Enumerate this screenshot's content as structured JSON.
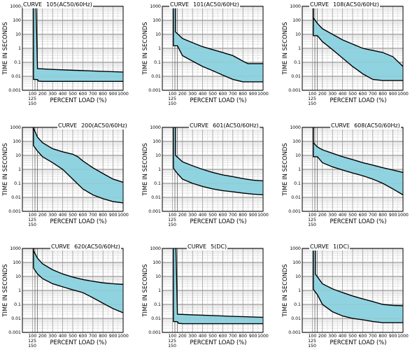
{
  "axes": {
    "ylabel": "TIME   IN   SECONDS",
    "xlabel": "PERCENT   LOAD   (%)",
    "ytick_labels": [
      "1000",
      "100",
      "10",
      "1",
      "0.1",
      "0.01",
      "0.001"
    ],
    "xtick_labels": [
      "100",
      "200",
      "300",
      "400",
      "500",
      "600",
      "700",
      "800",
      "900",
      "1000"
    ],
    "extra_xtick_labels": [
      "125",
      "150"
    ]
  },
  "colors": {
    "band_fill": "#8fd3e0",
    "grid_major": "#9d9d9d",
    "grid_minor": "#cfcfcf",
    "curve": "#000000"
  },
  "chart_data": [
    {
      "type": "area",
      "title_word": "CURVE",
      "title_code": "105(AC50/60Hz)",
      "xlabel": "PERCENT LOAD (%)",
      "ylabel": "TIME IN SECONDS",
      "xlim": [
        0,
        1000
      ],
      "ylim": [
        0.001,
        1000
      ],
      "yscale": "log",
      "upper": [
        [
          130,
          1000
        ],
        [
          135,
          1000
        ],
        [
          150,
          0.035
        ],
        [
          300,
          0.031
        ],
        [
          500,
          0.027
        ],
        [
          700,
          0.024
        ],
        [
          850,
          0.022
        ],
        [
          1000,
          0.02
        ]
      ],
      "lower": [
        [
          110,
          1000
        ],
        [
          110,
          0.006
        ],
        [
          150,
          0.0058
        ],
        [
          160,
          0.0045
        ],
        [
          200,
          0.0043
        ],
        [
          1000,
          0.0043
        ]
      ]
    },
    {
      "type": "area",
      "title_word": "CURVE",
      "title_code": "101(AC50/60Hz)",
      "xlabel": "PERCENT LOAD (%)",
      "ylabel": "TIME IN SECONDS",
      "xlim": [
        0,
        1000
      ],
      "ylim": [
        0.001,
        1000
      ],
      "yscale": "log",
      "upper": [
        [
          130,
          1000
        ],
        [
          130,
          15
        ],
        [
          200,
          5
        ],
        [
          300,
          2.5
        ],
        [
          400,
          1.3
        ],
        [
          500,
          0.8
        ],
        [
          600,
          0.5
        ],
        [
          700,
          0.3
        ],
        [
          800,
          0.12
        ],
        [
          850,
          0.08
        ],
        [
          1000,
          0.08
        ]
      ],
      "lower": [
        [
          110,
          1000
        ],
        [
          110,
          1.5
        ],
        [
          150,
          1.5
        ],
        [
          200,
          0.3
        ],
        [
          300,
          0.12
        ],
        [
          400,
          0.05
        ],
        [
          500,
          0.025
        ],
        [
          600,
          0.012
        ],
        [
          700,
          0.006
        ],
        [
          800,
          0.004
        ],
        [
          1000,
          0.004
        ]
      ]
    },
    {
      "type": "area",
      "title_word": "CURVE",
      "title_code": "108(AC50/60Hz)",
      "xlabel": "PERCENT LOAD (%)",
      "ylabel": "TIME IN SECONDS",
      "xlim": [
        0,
        1000
      ],
      "ylim": [
        0.001,
        1000
      ],
      "yscale": "log",
      "upper": [
        [
          110,
          1000
        ],
        [
          110,
          150
        ],
        [
          150,
          60
        ],
        [
          200,
          25
        ],
        [
          300,
          10
        ],
        [
          400,
          4
        ],
        [
          500,
          2
        ],
        [
          600,
          1
        ],
        [
          700,
          0.7
        ],
        [
          800,
          0.5
        ],
        [
          900,
          0.25
        ],
        [
          1000,
          0.05
        ]
      ],
      "lower": [
        [
          110,
          1000
        ],
        [
          110,
          8
        ],
        [
          150,
          8
        ],
        [
          200,
          3
        ],
        [
          300,
          0.8
        ],
        [
          400,
          0.2
        ],
        [
          500,
          0.05
        ],
        [
          600,
          0.015
        ],
        [
          700,
          0.006
        ],
        [
          800,
          0.005
        ],
        [
          1000,
          0.005
        ]
      ]
    },
    {
      "type": "area",
      "title_word": "CURVE",
      "title_code": "200(AC50/60Hz)",
      "xlabel": "PERCENT LOAD (%)",
      "ylabel": "TIME IN SECONDS",
      "xlim": [
        0,
        1000
      ],
      "ylim": [
        0.001,
        1000
      ],
      "yscale": "log",
      "upper": [
        [
          110,
          1000
        ],
        [
          110,
          900
        ],
        [
          150,
          200
        ],
        [
          200,
          80
        ],
        [
          300,
          30
        ],
        [
          400,
          18
        ],
        [
          500,
          12
        ],
        [
          550,
          8
        ],
        [
          600,
          4
        ],
        [
          700,
          1.3
        ],
        [
          800,
          0.5
        ],
        [
          900,
          0.2
        ],
        [
          1000,
          0.12
        ]
      ],
      "lower": [
        [
          110,
          1000
        ],
        [
          110,
          50
        ],
        [
          150,
          20
        ],
        [
          200,
          8
        ],
        [
          300,
          3
        ],
        [
          400,
          1
        ],
        [
          500,
          0.2
        ],
        [
          600,
          0.04
        ],
        [
          700,
          0.015
        ],
        [
          800,
          0.008
        ],
        [
          900,
          0.005
        ],
        [
          1000,
          0.004
        ]
      ]
    },
    {
      "type": "area",
      "title_word": "CURVE",
      "title_code": "601(AC50/60Hz)",
      "xlabel": "PERCENT LOAD (%)",
      "ylabel": "TIME IN SECONDS",
      "xlim": [
        0,
        1000
      ],
      "ylim": [
        0.001,
        1000
      ],
      "yscale": "log",
      "upper": [
        [
          130,
          1000
        ],
        [
          130,
          10
        ],
        [
          200,
          3.5
        ],
        [
          300,
          1.8
        ],
        [
          400,
          1
        ],
        [
          500,
          0.6
        ],
        [
          600,
          0.4
        ],
        [
          700,
          0.3
        ],
        [
          800,
          0.22
        ],
        [
          900,
          0.17
        ],
        [
          1000,
          0.15
        ]
      ],
      "lower": [
        [
          110,
          1000
        ],
        [
          110,
          1.2
        ],
        [
          150,
          0.5
        ],
        [
          200,
          0.2
        ],
        [
          300,
          0.1
        ],
        [
          400,
          0.06
        ],
        [
          500,
          0.04
        ],
        [
          600,
          0.03
        ],
        [
          700,
          0.025
        ],
        [
          800,
          0.02
        ],
        [
          900,
          0.017
        ],
        [
          1000,
          0.015
        ]
      ]
    },
    {
      "type": "area",
      "title_word": "CURVE",
      "title_code": "608(AC50/60Hz)",
      "xlabel": "PERCENT LOAD (%)",
      "ylabel": "TIME IN SECONDS",
      "xlim": [
        0,
        1000
      ],
      "ylim": [
        0.001,
        1000
      ],
      "yscale": "log",
      "upper": [
        [
          110,
          1000
        ],
        [
          110,
          80
        ],
        [
          150,
          40
        ],
        [
          200,
          25
        ],
        [
          300,
          14
        ],
        [
          400,
          8
        ],
        [
          500,
          5
        ],
        [
          600,
          3
        ],
        [
          700,
          2
        ],
        [
          800,
          1.3
        ],
        [
          900,
          0.9
        ],
        [
          1000,
          0.6
        ]
      ],
      "lower": [
        [
          110,
          1000
        ],
        [
          110,
          8
        ],
        [
          150,
          8
        ],
        [
          200,
          3
        ],
        [
          300,
          1.5
        ],
        [
          400,
          0.9
        ],
        [
          500,
          0.55
        ],
        [
          600,
          0.35
        ],
        [
          700,
          0.2
        ],
        [
          800,
          0.1
        ],
        [
          900,
          0.04
        ],
        [
          1000,
          0.015
        ]
      ]
    },
    {
      "type": "area",
      "title_word": "CURVE",
      "title_code": "620(AC50/60Hz)",
      "xlabel": "PERCENT LOAD (%)",
      "ylabel": "TIME IN SECONDS",
      "xlim": [
        0,
        1000
      ],
      "ylim": [
        0.001,
        1000
      ],
      "yscale": "log",
      "upper": [
        [
          110,
          1000
        ],
        [
          110,
          700
        ],
        [
          150,
          200
        ],
        [
          200,
          80
        ],
        [
          300,
          30
        ],
        [
          400,
          15
        ],
        [
          500,
          9
        ],
        [
          600,
          6
        ],
        [
          700,
          4.5
        ],
        [
          800,
          3.5
        ],
        [
          900,
          3
        ],
        [
          1000,
          2.7
        ]
      ],
      "lower": [
        [
          110,
          1000
        ],
        [
          110,
          40
        ],
        [
          150,
          15
        ],
        [
          200,
          7
        ],
        [
          300,
          3
        ],
        [
          400,
          1.8
        ],
        [
          500,
          1.1
        ],
        [
          600,
          0.7
        ],
        [
          700,
          0.3
        ],
        [
          800,
          0.12
        ],
        [
          900,
          0.05
        ],
        [
          1000,
          0.025
        ]
      ]
    },
    {
      "type": "area",
      "title_word": "CURVE",
      "title_code": "5(DC)",
      "xlabel": "PERCENT LOAD (%)",
      "ylabel": "TIME IN SECONDS",
      "xlim": [
        0,
        1000
      ],
      "ylim": [
        0.001,
        1000
      ],
      "yscale": "log",
      "upper": [
        [
          130,
          1000
        ],
        [
          135,
          1000
        ],
        [
          150,
          0.02
        ],
        [
          300,
          0.018
        ],
        [
          500,
          0.016
        ],
        [
          700,
          0.014
        ],
        [
          850,
          0.013
        ],
        [
          1000,
          0.012
        ]
      ],
      "lower": [
        [
          110,
          1000
        ],
        [
          110,
          0.006
        ],
        [
          150,
          0.0058
        ],
        [
          160,
          0.0045
        ],
        [
          200,
          0.0042
        ],
        [
          1000,
          0.0042
        ]
      ]
    },
    {
      "type": "area",
      "title_word": "CURVE",
      "title_code": "1(DC)",
      "xlabel": "PERCENT LOAD (%)",
      "ylabel": "TIME IN SECONDS",
      "xlim": [
        0,
        1000
      ],
      "ylim": [
        0.001,
        1000
      ],
      "yscale": "log",
      "upper": [
        [
          130,
          1000
        ],
        [
          130,
          15
        ],
        [
          200,
          3
        ],
        [
          300,
          1.3
        ],
        [
          400,
          0.7
        ],
        [
          500,
          0.4
        ],
        [
          600,
          0.25
        ],
        [
          700,
          0.16
        ],
        [
          800,
          0.1
        ],
        [
          900,
          0.085
        ],
        [
          1000,
          0.08
        ]
      ],
      "lower": [
        [
          110,
          1000
        ],
        [
          110,
          1.2
        ],
        [
          150,
          0.5
        ],
        [
          200,
          0.1
        ],
        [
          300,
          0.03
        ],
        [
          400,
          0.015
        ],
        [
          500,
          0.01
        ],
        [
          600,
          0.008
        ],
        [
          700,
          0.006
        ],
        [
          800,
          0.005
        ],
        [
          1000,
          0.005
        ]
      ]
    }
  ]
}
